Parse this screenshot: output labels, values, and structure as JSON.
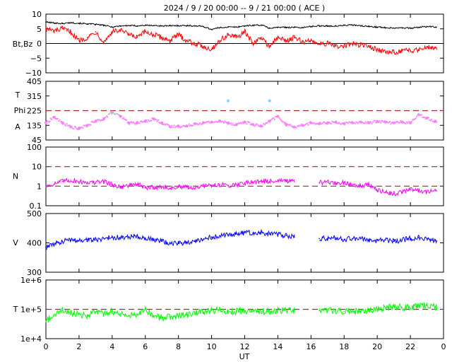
{
  "title": "2024 /  9 / 20   00:00 --  9 / 21   00:00 ( ACE )",
  "colors": {
    "bt": "#000000",
    "bz": "#ff0000",
    "theta": "#87cefa",
    "phi_away": "#c0c0c0",
    "phi_toward": "#ff80ff",
    "density": "#ff00ff",
    "speed": "#0000ff",
    "temperature": "#00ff00",
    "ref_line": "#a52a2a"
  },
  "chart_data": [
    {
      "type": "line",
      "name": "magnetic-field",
      "ylabel": "Bt,Bz",
      "ylim": [
        -10,
        10
      ],
      "yticks": [
        "10",
        "5",
        "0",
        "−5",
        "−10"
      ],
      "ytick_values": [
        10,
        5,
        0,
        -5,
        -10
      ],
      "zero_line": 0,
      "x": [
        0,
        0.5,
        1,
        1.5,
        2,
        2.5,
        3,
        3.5,
        4,
        4.5,
        5,
        5.5,
        6,
        6.5,
        7,
        7.5,
        8,
        8.5,
        9,
        9.5,
        10,
        10.5,
        11,
        11.5,
        12,
        12.5,
        13,
        13.5,
        14,
        14.5,
        15,
        15.5,
        16,
        16.5,
        17,
        17.5,
        18,
        18.5,
        19,
        19.5,
        20,
        20.5,
        21,
        21.5,
        22,
        22.5,
        23,
        23.5
      ],
      "series": [
        {
          "name": "Bt",
          "values": [
            7.3,
            7,
            6.8,
            7.1,
            6.9,
            6.7,
            6.5,
            6.2,
            5.6,
            6,
            6.1,
            6,
            6.2,
            6.1,
            6,
            6,
            6.1,
            6.1,
            6,
            5.8,
            4.8,
            5.4,
            5.6,
            5.6,
            6,
            6.2,
            6.3,
            5.2,
            5.5,
            5.5,
            5.5,
            5.4,
            5.8,
            6,
            6,
            5.9,
            6.2,
            6.3,
            6,
            5.8,
            5.6,
            5.4,
            5.3,
            5.4,
            5.2,
            5.5,
            5.8,
            5.6
          ]
        },
        {
          "name": "Bz",
          "values": [
            5,
            4.2,
            5,
            4,
            1,
            2,
            4,
            0.5,
            4,
            4.5,
            3,
            2,
            4,
            3,
            2,
            1,
            3,
            1,
            0,
            -1,
            -2,
            1,
            3,
            2,
            4,
            0,
            2,
            -1,
            2,
            1,
            2,
            0.5,
            1,
            0,
            0,
            -1,
            -1,
            0,
            -0.5,
            -1,
            -2,
            -3,
            -3,
            -2.5,
            -2.5,
            -2,
            -1,
            -1.5
          ]
        }
      ]
    },
    {
      "type": "scatter",
      "name": "field-angles",
      "ylabel_top": "T",
      "ylabel_mid": "Phi",
      "ylabel_bottom": "A",
      "ylim": [
        45,
        405
      ],
      "yticks": [
        "405",
        "315",
        "225",
        "135",
        "45"
      ],
      "ytick_values": [
        405,
        315,
        225,
        135,
        45
      ],
      "ref_line": 225,
      "x": [
        0,
        0.5,
        1,
        1.5,
        2,
        2.5,
        3,
        3.5,
        4,
        4.5,
        5,
        5.5,
        6,
        6.5,
        7,
        7.5,
        8,
        8.5,
        9,
        9.5,
        10,
        10.5,
        11,
        11.5,
        12,
        12.5,
        13,
        13.5,
        14,
        14.5,
        15,
        15.5,
        16,
        16.5,
        17,
        17.5,
        18,
        18.5,
        19,
        19.5,
        20,
        20.5,
        21,
        21.5,
        22,
        22.5,
        23,
        23.5
      ],
      "series": [
        {
          "name": "Phi",
          "values": [
            150,
            185,
            150,
            125,
            115,
            135,
            160,
            175,
            215,
            190,
            150,
            150,
            160,
            175,
            150,
            125,
            130,
            130,
            145,
            150,
            155,
            160,
            150,
            140,
            155,
            140,
            130,
            160,
            190,
            140,
            125,
            135,
            150,
            145,
            150,
            155,
            145,
            150,
            155,
            150,
            160,
            155,
            150,
            155,
            150,
            200,
            180,
            160
          ]
        },
        {
          "name": "Theta",
          "values": [
            null,
            null,
            null,
            null,
            null,
            null,
            null,
            null,
            null,
            null,
            null,
            null,
            null,
            null,
            null,
            null,
            null,
            null,
            null,
            null,
            null,
            null,
            285,
            null,
            null,
            null,
            null,
            285,
            null,
            null,
            null,
            null,
            null,
            null,
            null,
            null,
            null,
            null,
            null,
            null,
            null,
            null,
            null,
            null,
            null,
            null,
            null,
            null
          ]
        }
      ]
    },
    {
      "type": "line",
      "name": "proton-density",
      "ylabel": "N",
      "scale": "log",
      "ylim": [
        0.1,
        100
      ],
      "yticks": [
        "100",
        "10",
        "1",
        "0.1"
      ],
      "ytick_values": [
        100,
        10,
        1,
        0.1
      ],
      "ref_lines": [
        10,
        1
      ],
      "x": [
        0,
        0.5,
        1,
        1.5,
        2,
        2.5,
        3,
        3.5,
        4,
        4.5,
        5,
        5.5,
        6,
        6.5,
        7,
        7.5,
        8,
        8.5,
        9,
        9.5,
        10,
        10.5,
        11,
        11.5,
        12,
        12.5,
        13,
        13.5,
        14,
        14.5,
        15,
        15.5,
        16,
        16.5,
        17,
        17.5,
        18,
        18.5,
        19,
        19.5,
        20,
        20.5,
        21,
        21.5,
        22,
        22.5,
        23,
        23.5
      ],
      "series": [
        {
          "name": "N",
          "values": [
            1,
            1.3,
            1.8,
            2,
            1.7,
            1.6,
            1.5,
            1.8,
            1.2,
            0.9,
            1.1,
            1.3,
            0.8,
            0.9,
            0.9,
            0.8,
            0.9,
            0.9,
            0.8,
            1,
            1.1,
            1.2,
            1.1,
            1.2,
            1.5,
            1.7,
            1.8,
            1.7,
            2.1,
            1.8,
            1.7,
            null,
            null,
            1.5,
            1.6,
            1.4,
            1.5,
            1.2,
            1.1,
            1.2,
            0.6,
            0.5,
            0.4,
            0.5,
            0.7,
            0.6,
            0.5,
            0.7
          ]
        }
      ]
    },
    {
      "type": "line",
      "name": "solar-wind-speed",
      "ylabel": "V",
      "ylim": [
        300,
        500
      ],
      "yticks": [
        "500",
        "400",
        "300"
      ],
      "ytick_values": [
        500,
        400,
        300
      ],
      "x": [
        0,
        0.5,
        1,
        1.5,
        2,
        2.5,
        3,
        3.5,
        4,
        4.5,
        5,
        5.5,
        6,
        6.5,
        7,
        7.5,
        8,
        8.5,
        9,
        9.5,
        10,
        10.5,
        11,
        11.5,
        12,
        12.5,
        13,
        13.5,
        14,
        14.5,
        15,
        15.5,
        16,
        16.5,
        17,
        17.5,
        18,
        18.5,
        19,
        19.5,
        20,
        20.5,
        21,
        21.5,
        22,
        22.5,
        23,
        23.5
      ],
      "series": [
        {
          "name": "V",
          "values": [
            385,
            395,
            405,
            410,
            408,
            412,
            410,
            415,
            420,
            418,
            420,
            425,
            415,
            410,
            405,
            400,
            398,
            402,
            405,
            410,
            420,
            425,
            428,
            430,
            435,
            432,
            435,
            430,
            428,
            425,
            420,
            null,
            null,
            415,
            415,
            418,
            412,
            415,
            415,
            410,
            408,
            410,
            405,
            410,
            415,
            418,
            410,
            408
          ]
        }
      ]
    },
    {
      "type": "line",
      "name": "proton-temperature",
      "ylabel": "T",
      "scale": "log",
      "ylim": [
        10000,
        1000000
      ],
      "yticks": [
        "1e+6",
        "1e+5",
        "1e+4"
      ],
      "ytick_values": [
        1000000,
        100000,
        10000
      ],
      "ref_line": 100000,
      "x": [
        0,
        0.5,
        1,
        1.5,
        2,
        2.5,
        3,
        3.5,
        4,
        4.5,
        5,
        5.5,
        6,
        6.5,
        7,
        7.5,
        8,
        8.5,
        9,
        9.5,
        10,
        10.5,
        11,
        11.5,
        12,
        12.5,
        13,
        13.5,
        14,
        14.5,
        15,
        15.5,
        16,
        16.5,
        17,
        17.5,
        18,
        18.5,
        19,
        19.5,
        20,
        20.5,
        21,
        21.5,
        22,
        22.5,
        23,
        23.5
      ],
      "series": [
        {
          "name": "T",
          "values": [
            40000,
            60000,
            90000,
            80000,
            70000,
            60000,
            80000,
            70000,
            90000,
            70000,
            60000,
            70000,
            100000,
            60000,
            50000,
            55000,
            60000,
            65000,
            75000,
            80000,
            90000,
            95000,
            90000,
            85000,
            90000,
            95000,
            85000,
            90000,
            95000,
            90000,
            90000,
            null,
            null,
            90000,
            95000,
            90000,
            85000,
            90000,
            80000,
            90000,
            100000,
            110000,
            130000,
            120000,
            110000,
            130000,
            140000,
            120000
          ]
        }
      ]
    }
  ],
  "xaxis": {
    "xlabel": "UT",
    "xlim": [
      0,
      24
    ],
    "ticks": [
      "0",
      "2",
      "4",
      "6",
      "8",
      "10",
      "12",
      "14",
      "16",
      "18",
      "20",
      "22",
      "0"
    ],
    "tick_values": [
      0,
      2,
      4,
      6,
      8,
      10,
      12,
      14,
      16,
      18,
      20,
      22,
      24
    ]
  }
}
